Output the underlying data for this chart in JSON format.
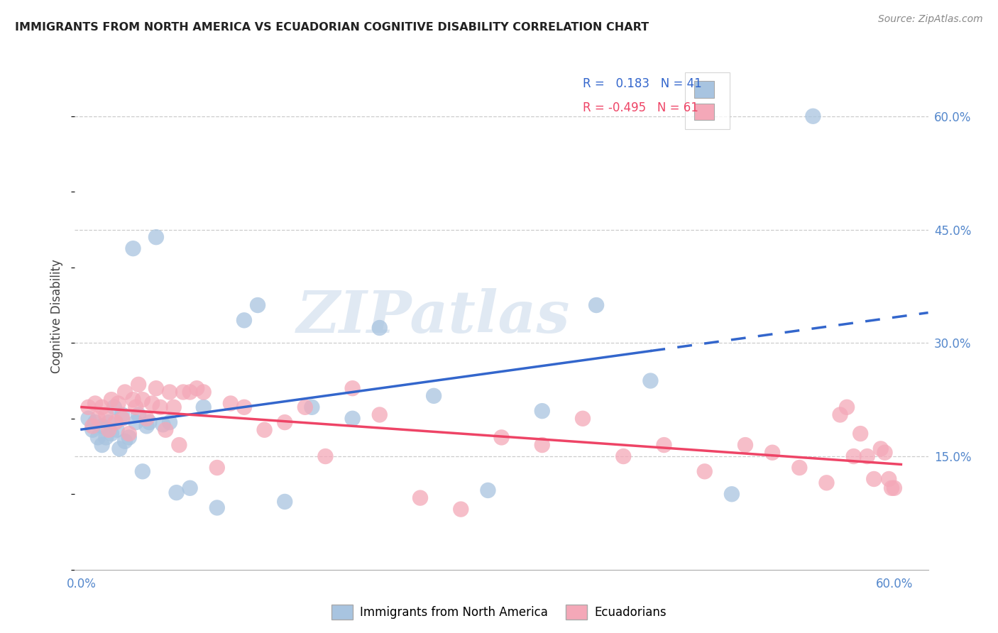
{
  "title": "IMMIGRANTS FROM NORTH AMERICA VS ECUADORIAN COGNITIVE DISABILITY CORRELATION CHART",
  "source": "Source: ZipAtlas.com",
  "ylabel": "Cognitive Disability",
  "ytick_vals": [
    0.6,
    0.45,
    0.3,
    0.15
  ],
  "ytick_labels": [
    "60.0%",
    "45.0%",
    "30.0%",
    "15.0%"
  ],
  "xtick_vals": [
    0.0,
    0.6
  ],
  "xtick_labels": [
    "0.0%",
    "60.0%"
  ],
  "xmin": -0.005,
  "xmax": 0.625,
  "ymin": 0.0,
  "ymax": 0.67,
  "r_blue": "0.183",
  "n_blue": "41",
  "r_pink": "-0.495",
  "n_pink": "61",
  "blue_scatter_color": "#a8c4e0",
  "pink_scatter_color": "#f4a8b8",
  "blue_line_color": "#3366cc",
  "pink_line_color": "#ee4466",
  "legend_blue_label": "Immigrants from North America",
  "legend_pink_label": "Ecuadorians",
  "watermark_text": "ZIPatlas",
  "watermark_color": "#c8d8ea",
  "axis_color": "#5588cc",
  "title_color": "#222222",
  "source_color": "#888888",
  "grid_color": "#cccccc",
  "blue_x": [
    0.005,
    0.008,
    0.01,
    0.012,
    0.015,
    0.015,
    0.018,
    0.02,
    0.022,
    0.024,
    0.026,
    0.028,
    0.03,
    0.032,
    0.035,
    0.038,
    0.04,
    0.042,
    0.045,
    0.048,
    0.05,
    0.055,
    0.06,
    0.065,
    0.07,
    0.08,
    0.09,
    0.1,
    0.12,
    0.13,
    0.15,
    0.17,
    0.2,
    0.22,
    0.26,
    0.3,
    0.34,
    0.38,
    0.42,
    0.48,
    0.54
  ],
  "blue_y": [
    0.2,
    0.185,
    0.195,
    0.175,
    0.19,
    0.165,
    0.175,
    0.195,
    0.18,
    0.215,
    0.185,
    0.16,
    0.205,
    0.17,
    0.175,
    0.425,
    0.195,
    0.205,
    0.13,
    0.19,
    0.195,
    0.44,
    0.192,
    0.195,
    0.102,
    0.108,
    0.215,
    0.082,
    0.33,
    0.35,
    0.09,
    0.215,
    0.2,
    0.32,
    0.23,
    0.105,
    0.21,
    0.35,
    0.25,
    0.1,
    0.6
  ],
  "pink_x": [
    0.005,
    0.008,
    0.01,
    0.012,
    0.015,
    0.018,
    0.02,
    0.022,
    0.025,
    0.027,
    0.03,
    0.032,
    0.035,
    0.038,
    0.04,
    0.042,
    0.045,
    0.048,
    0.052,
    0.055,
    0.058,
    0.062,
    0.065,
    0.068,
    0.072,
    0.075,
    0.08,
    0.085,
    0.09,
    0.1,
    0.11,
    0.12,
    0.135,
    0.15,
    0.165,
    0.18,
    0.2,
    0.22,
    0.25,
    0.28,
    0.31,
    0.34,
    0.37,
    0.4,
    0.43,
    0.46,
    0.49,
    0.51,
    0.53,
    0.55,
    0.56,
    0.565,
    0.57,
    0.575,
    0.58,
    0.585,
    0.59,
    0.593,
    0.596,
    0.598,
    0.6
  ],
  "pink_y": [
    0.215,
    0.19,
    0.22,
    0.2,
    0.215,
    0.205,
    0.185,
    0.225,
    0.195,
    0.22,
    0.2,
    0.235,
    0.18,
    0.225,
    0.215,
    0.245,
    0.225,
    0.2,
    0.22,
    0.24,
    0.215,
    0.185,
    0.235,
    0.215,
    0.165,
    0.235,
    0.235,
    0.24,
    0.235,
    0.135,
    0.22,
    0.215,
    0.185,
    0.195,
    0.215,
    0.15,
    0.24,
    0.205,
    0.095,
    0.08,
    0.175,
    0.165,
    0.2,
    0.15,
    0.165,
    0.13,
    0.165,
    0.155,
    0.135,
    0.115,
    0.205,
    0.215,
    0.15,
    0.18,
    0.15,
    0.12,
    0.16,
    0.155,
    0.12,
    0.108,
    0.108
  ]
}
